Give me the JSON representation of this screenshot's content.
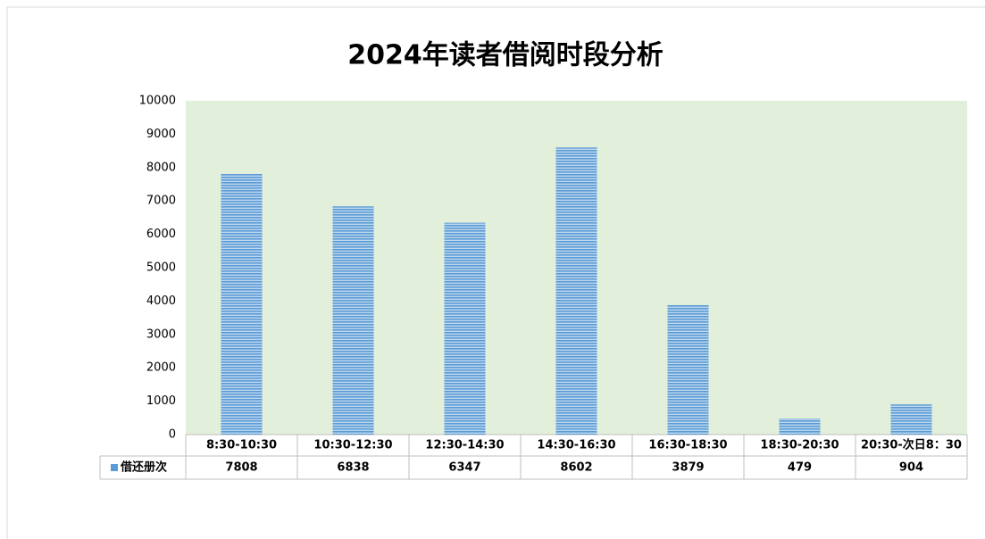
{
  "chart_data": {
    "type": "bar",
    "title": "2024年读者借阅时段分析",
    "categories": [
      "8:30-10:30",
      "10:30-12:30",
      "12:30-14:30",
      "14:30-16:30",
      "16:30-18:30",
      "18:30-20:30",
      "20:30-次日8：30"
    ],
    "series": [
      {
        "name": "借还册次",
        "color": "#5b9bd5",
        "values": [
          7808,
          6838,
          6347,
          8602,
          3879,
          479,
          904
        ]
      }
    ],
    "ylim": [
      0,
      10000
    ],
    "yticks": [
      0,
      1000,
      2000,
      3000,
      4000,
      5000,
      6000,
      7000,
      8000,
      9000,
      10000
    ],
    "plot_background": "#e2efda"
  }
}
